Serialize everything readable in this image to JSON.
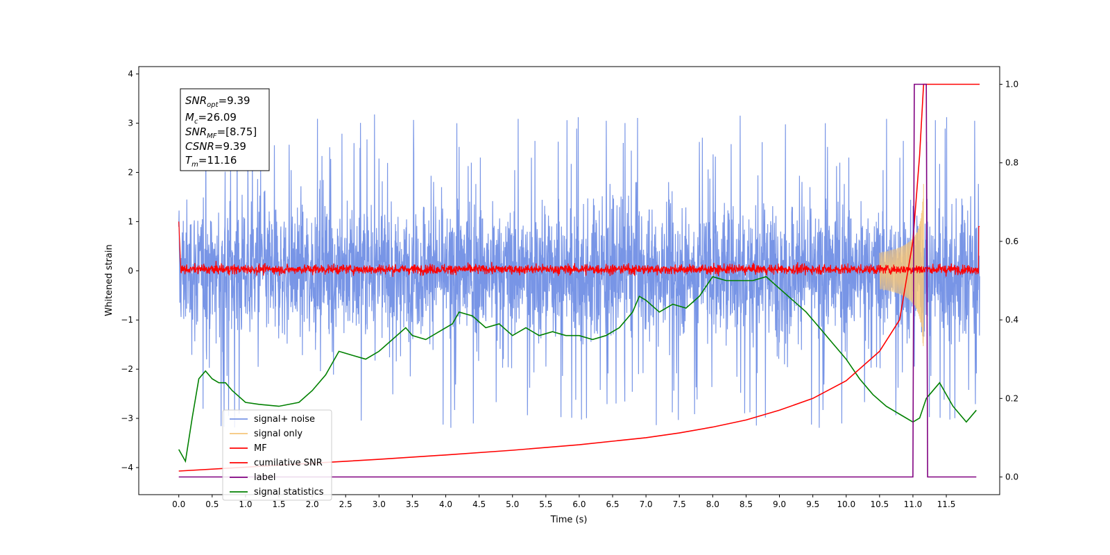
{
  "chart_data": {
    "type": "line",
    "xlabel": "Time (s)",
    "ylabel": "Whitened strain",
    "xlim": [
      -0.6,
      12.3
    ],
    "ylim": [
      -4.55,
      4.15
    ],
    "y2lim": [
      -0.045,
      1.045
    ],
    "x_ticks": [
      0.0,
      0.5,
      1.0,
      1.5,
      2.0,
      2.5,
      3.0,
      3.5,
      4.0,
      4.5,
      5.0,
      5.5,
      6.0,
      6.5,
      7.0,
      7.5,
      8.0,
      8.5,
      9.0,
      9.5,
      10.0,
      10.5,
      11.0,
      11.5
    ],
    "x_tick_labels": [
      "0.0",
      "0.5",
      "1.0",
      "1.5",
      "2.0",
      "2.5",
      "3.0",
      "3.5",
      "4.0",
      "4.5",
      "5.0",
      "5.5",
      "6.0",
      "6.5",
      "7.0",
      "7.5",
      "8.0",
      "8.5",
      "9.0",
      "9.5",
      "10.0",
      "10.5",
      "11.0",
      "11.5"
    ],
    "y_ticks": [
      4,
      3,
      2,
      1,
      0,
      -1,
      -2,
      -3,
      -4
    ],
    "y_tick_labels": [
      "4",
      "3",
      "2",
      "1",
      "0",
      "−1",
      "−2",
      "−3",
      "−4"
    ],
    "y2_ticks": [
      1.0,
      0.8,
      0.6,
      0.4,
      0.2,
      0.0
    ],
    "y2_tick_labels": [
      "1.0",
      "0.8",
      "0.6",
      "0.4",
      "0.2",
      "0.0"
    ],
    "annotation": [
      {
        "sym": "SNR",
        "sub": "opt",
        "value": "=9.39"
      },
      {
        "sym": "M",
        "sub": "c",
        "value": "=26.09"
      },
      {
        "sym": "SNR",
        "sub": "MF",
        "value": "=[8.75]"
      },
      {
        "sym": "CSNR",
        "sub": "",
        "value": "=9.39"
      },
      {
        "sym": "T",
        "sub": "m",
        "value": "=11.16"
      }
    ],
    "legend_position": "lower-left",
    "series": [
      {
        "name": "signal+ noise",
        "color": "#7895e6",
        "axis": "left",
        "t_start": 0.0,
        "t_end": 12.0,
        "envelope_lo": -2.2,
        "envelope_hi": 2.2
      },
      {
        "name": "signal only",
        "color": "#f5c67a",
        "axis": "left",
        "t_start": 10.5,
        "t_end": 11.16,
        "peak_amplitude": 1.8
      },
      {
        "name": "MF",
        "color": "#ff0000",
        "axis": "left",
        "t_start": 0.0,
        "t_end": 12.0,
        "envelope_lo": -0.15,
        "envelope_hi": 0.2
      },
      {
        "name": "cumilative SNR",
        "color": "#ff0000",
        "axis": "right",
        "x": [
          0.0,
          1.0,
          2.0,
          3.0,
          4.0,
          5.0,
          6.0,
          7.0,
          7.5,
          8.0,
          8.5,
          9.0,
          9.5,
          10.0,
          10.5,
          10.8,
          11.0,
          11.1,
          11.16,
          12.0
        ],
        "y": [
          0.015,
          0.025,
          0.035,
          0.045,
          0.056,
          0.068,
          0.082,
          0.1,
          0.112,
          0.127,
          0.145,
          0.17,
          0.2,
          0.245,
          0.32,
          0.4,
          0.6,
          0.82,
          1.0,
          1.0
        ]
      },
      {
        "name": "label",
        "color": "#800080",
        "axis": "right",
        "x": [
          0.0,
          11.0,
          11.02,
          11.2,
          11.22,
          11.95
        ],
        "y": [
          0.0,
          0.0,
          1.0,
          1.0,
          0.0,
          0.0
        ]
      },
      {
        "name": "signal statistics",
        "color": "#008000",
        "axis": "right",
        "x": [
          0.0,
          0.1,
          0.2,
          0.3,
          0.4,
          0.5,
          0.6,
          0.7,
          0.8,
          1.0,
          1.2,
          1.5,
          1.8,
          2.0,
          2.2,
          2.4,
          2.6,
          2.8,
          3.0,
          3.2,
          3.4,
          3.5,
          3.7,
          3.9,
          4.1,
          4.2,
          4.4,
          4.6,
          4.8,
          5.0,
          5.2,
          5.4,
          5.6,
          5.8,
          6.0,
          6.2,
          6.4,
          6.6,
          6.8,
          6.9,
          7.0,
          7.2,
          7.4,
          7.6,
          7.8,
          8.0,
          8.2,
          8.4,
          8.6,
          8.8,
          9.0,
          9.2,
          9.4,
          9.6,
          9.8,
          10.0,
          10.2,
          10.4,
          10.6,
          10.8,
          11.0,
          11.1,
          11.2,
          11.4,
          11.6,
          11.8,
          11.95
        ],
        "y": [
          0.07,
          0.04,
          0.15,
          0.25,
          0.27,
          0.25,
          0.24,
          0.24,
          0.22,
          0.19,
          0.185,
          0.18,
          0.19,
          0.22,
          0.26,
          0.32,
          0.31,
          0.3,
          0.32,
          0.35,
          0.38,
          0.36,
          0.35,
          0.37,
          0.39,
          0.42,
          0.41,
          0.38,
          0.39,
          0.36,
          0.38,
          0.36,
          0.37,
          0.36,
          0.36,
          0.35,
          0.36,
          0.38,
          0.42,
          0.46,
          0.45,
          0.42,
          0.44,
          0.43,
          0.46,
          0.51,
          0.5,
          0.5,
          0.5,
          0.51,
          0.48,
          0.45,
          0.42,
          0.38,
          0.34,
          0.3,
          0.25,
          0.21,
          0.18,
          0.16,
          0.14,
          0.15,
          0.2,
          0.24,
          0.18,
          0.14,
          0.17
        ]
      }
    ]
  }
}
